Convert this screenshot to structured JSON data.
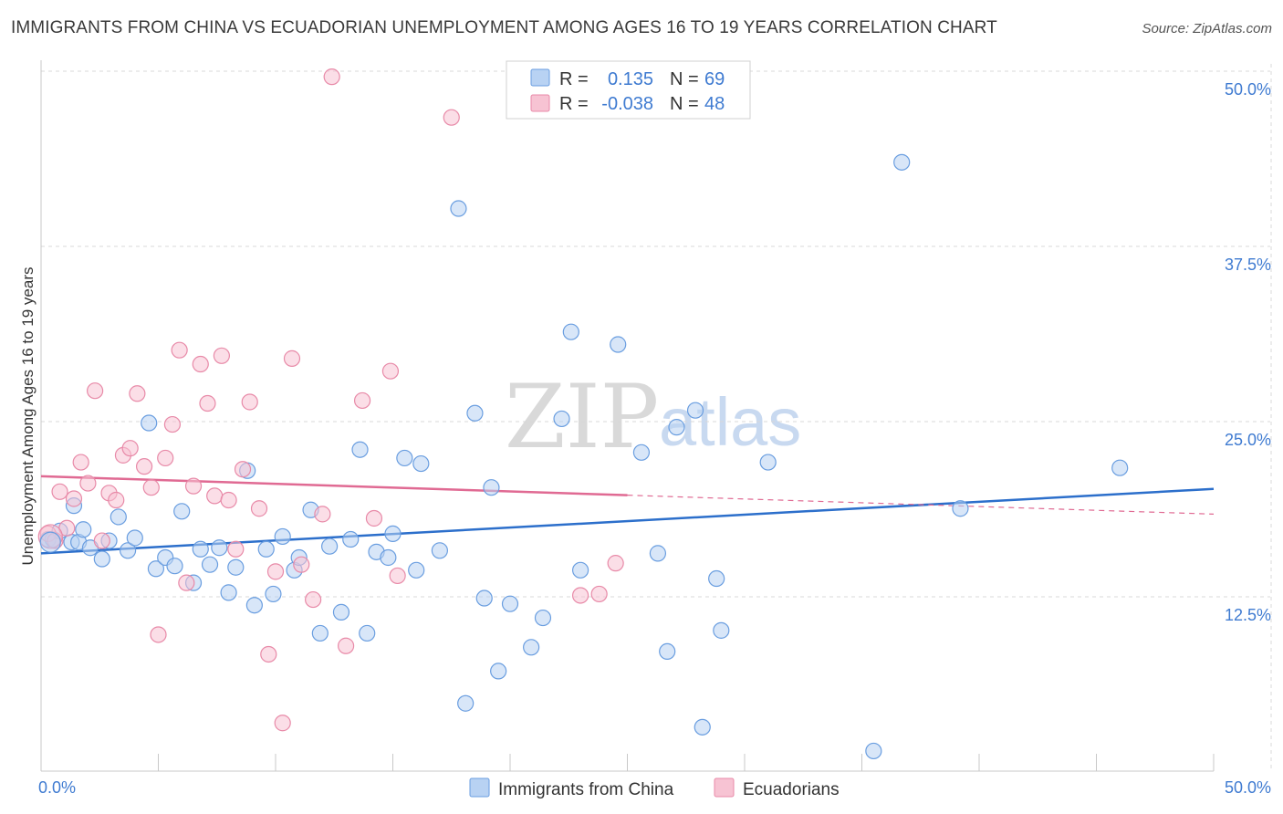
{
  "title": "IMMIGRANTS FROM CHINA VS ECUADORIAN UNEMPLOYMENT AMONG AGES 16 TO 19 YEARS CORRELATION CHART",
  "source": "Source: ZipAtlas.com",
  "watermark": {
    "zip": "ZIP",
    "atlas": "atlas"
  },
  "colors": {
    "china_fill": "#b8d2f3",
    "china_stroke": "#6a9ee0",
    "china_line": "#2c6fcb",
    "ecuador_fill": "#f7c3d3",
    "ecuador_stroke": "#e88aa8",
    "ecuador_line": "#e06a93",
    "grid": "#d8d8d8",
    "tick_text": "#3f7bd1"
  },
  "legend": {
    "rows": [
      {
        "r_label": "R =",
        "r_value": "0.135",
        "n_label": "N =",
        "n_value": "69"
      },
      {
        "r_label": "R =",
        "r_value": "-0.038",
        "n_label": "N =",
        "n_value": "48"
      }
    ]
  },
  "chart_data": {
    "type": "scatter",
    "title": "IMMIGRANTS FROM CHINA VS ECUADORIAN UNEMPLOYMENT AMONG AGES 16 TO 19 YEARS CORRELATION CHART",
    "xlabel": "",
    "ylabel": "Unemployment Among Ages 16 to 19 years",
    "xlim": [
      0,
      50
    ],
    "ylim": [
      0,
      50
    ],
    "x_tick_labels": [
      "0.0%",
      "50.0%"
    ],
    "y_ticks": [
      12.5,
      25.0,
      37.5,
      50.0
    ],
    "y_tick_labels": [
      "12.5%",
      "25.0%",
      "37.5%",
      "50.0%"
    ],
    "grid": true,
    "legend_placement": "top-center",
    "series": [
      {
        "name": "Immigrants from China",
        "trend": {
          "x": [
            0,
            50
          ],
          "y": [
            15.6,
            20.2
          ],
          "dashed_from": null
        },
        "points": [
          [
            0.3,
            16.6
          ],
          [
            0.5,
            16.6
          ],
          [
            0.8,
            17.2
          ],
          [
            1.3,
            16.4
          ],
          [
            1.6,
            16.4
          ],
          [
            1.4,
            19.0
          ],
          [
            1.8,
            17.3
          ],
          [
            2.1,
            16.0
          ],
          [
            2.6,
            15.2
          ],
          [
            2.9,
            16.5
          ],
          [
            3.3,
            18.2
          ],
          [
            3.7,
            15.8
          ],
          [
            4.0,
            16.7
          ],
          [
            4.6,
            24.9
          ],
          [
            4.9,
            14.5
          ],
          [
            5.3,
            15.3
          ],
          [
            5.7,
            14.7
          ],
          [
            6.0,
            18.6
          ],
          [
            6.5,
            13.5
          ],
          [
            6.8,
            15.9
          ],
          [
            7.2,
            14.8
          ],
          [
            7.6,
            16.0
          ],
          [
            8.0,
            12.8
          ],
          [
            8.3,
            14.6
          ],
          [
            8.8,
            21.5
          ],
          [
            9.1,
            11.9
          ],
          [
            9.6,
            15.9
          ],
          [
            9.9,
            12.7
          ],
          [
            10.3,
            16.8
          ],
          [
            10.8,
            14.4
          ],
          [
            11.0,
            15.3
          ],
          [
            11.5,
            18.7
          ],
          [
            11.9,
            9.9
          ],
          [
            12.3,
            16.1
          ],
          [
            12.8,
            11.4
          ],
          [
            13.2,
            16.6
          ],
          [
            13.6,
            23.0
          ],
          [
            13.9,
            9.9
          ],
          [
            14.3,
            15.7
          ],
          [
            14.8,
            15.3
          ],
          [
            15.0,
            17.0
          ],
          [
            15.5,
            22.4
          ],
          [
            16.0,
            14.4
          ],
          [
            16.2,
            22.0
          ],
          [
            17.0,
            15.8
          ],
          [
            17.8,
            40.2
          ],
          [
            18.1,
            4.9
          ],
          [
            18.5,
            25.6
          ],
          [
            18.9,
            12.4
          ],
          [
            19.2,
            20.3
          ],
          [
            19.5,
            7.2
          ],
          [
            20.0,
            12.0
          ],
          [
            20.9,
            8.9
          ],
          [
            21.4,
            11.0
          ],
          [
            22.2,
            25.2
          ],
          [
            22.6,
            31.4
          ],
          [
            23.0,
            14.4
          ],
          [
            24.6,
            30.5
          ],
          [
            25.6,
            22.8
          ],
          [
            26.3,
            15.6
          ],
          [
            26.7,
            8.6
          ],
          [
            27.1,
            24.6
          ],
          [
            27.9,
            25.8
          ],
          [
            28.2,
            3.2
          ],
          [
            28.8,
            13.8
          ],
          [
            29.0,
            10.1
          ],
          [
            31.0,
            22.1
          ],
          [
            35.5,
            1.5
          ],
          [
            36.7,
            43.5
          ],
          [
            39.2,
            18.8
          ],
          [
            46.0,
            21.7
          ]
        ]
      },
      {
        "name": "Ecuadorians",
        "trend": {
          "x": [
            0,
            50
          ],
          "y": [
            21.1,
            18.4
          ],
          "dashed_from": 25.0
        },
        "points": [
          [
            0.3,
            17.0
          ],
          [
            0.6,
            16.5
          ],
          [
            0.8,
            20.0
          ],
          [
            1.1,
            17.4
          ],
          [
            1.4,
            19.5
          ],
          [
            1.7,
            22.1
          ],
          [
            2.0,
            20.6
          ],
          [
            2.3,
            27.2
          ],
          [
            2.6,
            16.5
          ],
          [
            2.9,
            19.9
          ],
          [
            3.2,
            19.4
          ],
          [
            3.5,
            22.6
          ],
          [
            3.8,
            23.1
          ],
          [
            4.1,
            27.0
          ],
          [
            4.4,
            21.8
          ],
          [
            4.7,
            20.3
          ],
          [
            5.0,
            9.8
          ],
          [
            5.3,
            22.4
          ],
          [
            5.6,
            24.8
          ],
          [
            5.9,
            30.1
          ],
          [
            6.2,
            13.5
          ],
          [
            6.5,
            20.4
          ],
          [
            6.8,
            29.1
          ],
          [
            7.1,
            26.3
          ],
          [
            7.4,
            19.7
          ],
          [
            7.7,
            29.7
          ],
          [
            8.0,
            19.4
          ],
          [
            8.3,
            15.9
          ],
          [
            8.6,
            21.6
          ],
          [
            8.9,
            26.4
          ],
          [
            9.3,
            18.8
          ],
          [
            9.7,
            8.4
          ],
          [
            10.0,
            14.3
          ],
          [
            10.3,
            3.5
          ],
          [
            10.7,
            29.5
          ],
          [
            11.1,
            14.8
          ],
          [
            11.6,
            12.3
          ],
          [
            12.0,
            18.4
          ],
          [
            12.4,
            49.6
          ],
          [
            13.0,
            9.0
          ],
          [
            13.7,
            26.5
          ],
          [
            14.2,
            18.1
          ],
          [
            14.9,
            28.6
          ],
          [
            15.2,
            14.0
          ],
          [
            17.5,
            46.7
          ],
          [
            23.0,
            12.6
          ],
          [
            23.8,
            12.7
          ],
          [
            24.5,
            14.9
          ]
        ]
      }
    ]
  },
  "bottom_legend": [
    {
      "label": "Immigrants from China"
    },
    {
      "label": "Ecuadorians"
    }
  ]
}
